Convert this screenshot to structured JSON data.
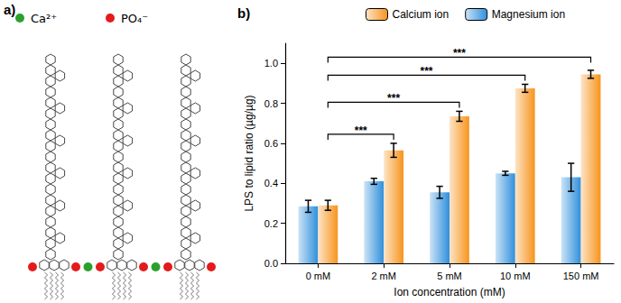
{
  "diagram": {
    "label": "a)",
    "legend": [
      {
        "text": "Ca²⁺",
        "color": "#2ca02c"
      },
      {
        "text": "PO₄⁻",
        "color": "#e41a1c"
      }
    ]
  },
  "chart_data": {
    "type": "bar",
    "title": "b)",
    "x_label": "Ion concentration (mM)",
    "y_label": "LPS to lipid ratio (µg/µg)",
    "categories": [
      "0 mM",
      "2 mM",
      "5 mM",
      "10 mM",
      "150 mM"
    ],
    "series": [
      {
        "name": "Magnesium ion",
        "color": "#2f8fdc",
        "values": [
          0.285,
          0.41,
          0.355,
          0.45,
          0.43
        ],
        "errors": [
          0.03,
          0.015,
          0.03,
          0.01,
          0.07
        ]
      },
      {
        "name": "Calcium ion",
        "color": "#f7941d",
        "values": [
          0.29,
          0.565,
          0.735,
          0.875,
          0.945
        ],
        "errors": [
          0.025,
          0.035,
          0.025,
          0.02,
          0.02
        ]
      }
    ],
    "ylim": [
      0,
      1.1
    ],
    "yticks": [
      {
        "value": 0,
        "label": "0.0"
      },
      0.2,
      0.4,
      0.6,
      0.8,
      {
        "value": 1,
        "label": "1.0"
      }
    ],
    "annotations": [
      {
        "text": "***",
        "from": "0 mM",
        "to": "2 mM",
        "series": "Calcium ion"
      },
      {
        "text": "***",
        "from": "0 mM",
        "to": "5 mM",
        "series": "Calcium ion"
      },
      {
        "text": "***",
        "from": "0 mM",
        "to": "10 mM",
        "series": "Calcium ion"
      },
      {
        "text": "***",
        "from": "0 mM",
        "to": "150 mM",
        "series": "Calcium ion"
      }
    ],
    "legend": "top",
    "grid": false
  }
}
